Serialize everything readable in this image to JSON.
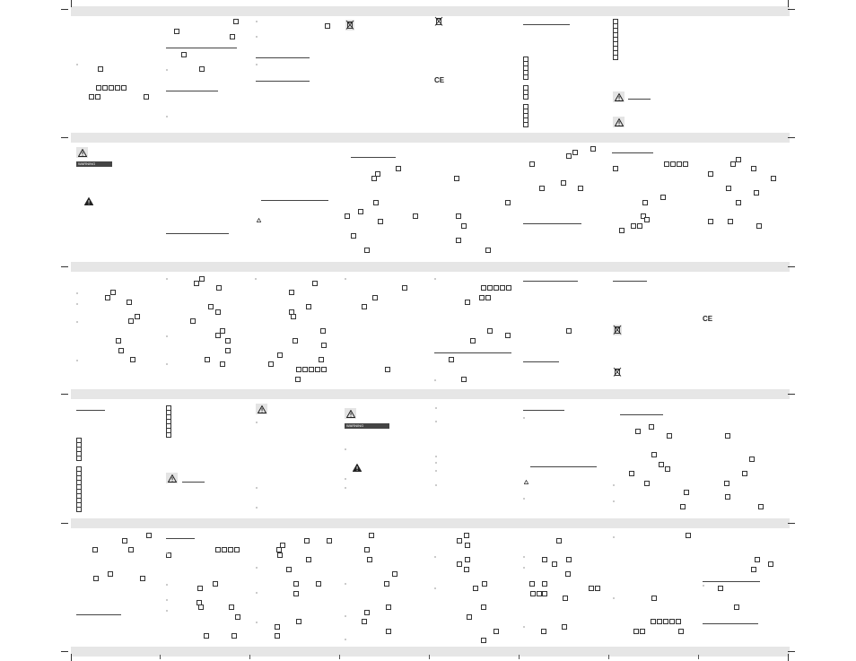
{
  "page": {
    "bands": 6,
    "columns": 8
  },
  "symbols": {
    "warning_icon": "warning-triangle-icon",
    "recycle_icon": "crossed-bin-icon",
    "ce_mark": "CE",
    "label_text": "WARNING"
  },
  "colors": {
    "band": "#e6e6e6",
    "ink": "#222222",
    "icon_frame": "#e4e4e4"
  }
}
